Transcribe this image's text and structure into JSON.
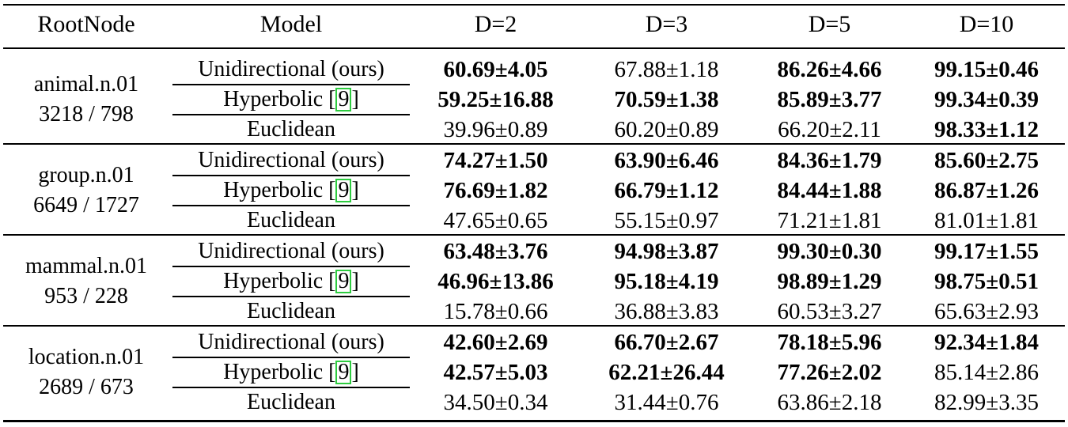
{
  "table": {
    "headers": [
      "RootNode",
      "Model",
      "D=2",
      "D=3",
      "D=5",
      "D=10"
    ],
    "groups": [
      {
        "root": "animal.n.01",
        "counts": "3218 / 798",
        "rows": [
          {
            "model": "Unidirectional (ours)",
            "cite": "",
            "cells": [
              {
                "text": "60.69±4.05",
                "bold": true
              },
              {
                "text": "67.88±1.18",
                "bold": false
              },
              {
                "text": "86.26±4.66",
                "bold": true
              },
              {
                "text": "99.15±0.46",
                "bold": true
              }
            ]
          },
          {
            "model": "Hyperbolic [",
            "cite": "9",
            "cells": [
              {
                "text": "59.25±16.88",
                "bold": true
              },
              {
                "text": "70.59±1.38",
                "bold": true
              },
              {
                "text": "85.89±3.77",
                "bold": true
              },
              {
                "text": "99.34±0.39",
                "bold": true
              }
            ]
          },
          {
            "model": "Euclidean",
            "cite": "",
            "cells": [
              {
                "text": "39.96±0.89",
                "bold": false
              },
              {
                "text": "60.20±0.89",
                "bold": false
              },
              {
                "text": "66.20±2.11",
                "bold": false
              },
              {
                "text": "98.33±1.12",
                "bold": true
              }
            ]
          }
        ]
      },
      {
        "root": "group.n.01",
        "counts": "6649 / 1727",
        "rows": [
          {
            "model": "Unidirectional (ours)",
            "cite": "",
            "cells": [
              {
                "text": "74.27±1.50",
                "bold": true
              },
              {
                "text": "63.90±6.46",
                "bold": true
              },
              {
                "text": "84.36±1.79",
                "bold": true
              },
              {
                "text": "85.60±2.75",
                "bold": true
              }
            ]
          },
          {
            "model": "Hyperbolic [",
            "cite": "9",
            "cells": [
              {
                "text": "76.69±1.82",
                "bold": true
              },
              {
                "text": "66.79±1.12",
                "bold": true
              },
              {
                "text": "84.44±1.88",
                "bold": true
              },
              {
                "text": "86.87±1.26",
                "bold": true
              }
            ]
          },
          {
            "model": "Euclidean",
            "cite": "",
            "cells": [
              {
                "text": "47.65±0.65",
                "bold": false
              },
              {
                "text": "55.15±0.97",
                "bold": false
              },
              {
                "text": "71.21±1.81",
                "bold": false
              },
              {
                "text": "81.01±1.81",
                "bold": false
              }
            ]
          }
        ]
      },
      {
        "root": "mammal.n.01",
        "counts": "953 / 228",
        "rows": [
          {
            "model": "Unidirectional (ours)",
            "cite": "",
            "cells": [
              {
                "text": "63.48±3.76",
                "bold": true
              },
              {
                "text": "94.98±3.87",
                "bold": true
              },
              {
                "text": "99.30±0.30",
                "bold": true
              },
              {
                "text": "99.17±1.55",
                "bold": true
              }
            ]
          },
          {
            "model": "Hyperbolic [",
            "cite": "9",
            "cells": [
              {
                "text": "46.96±13.86",
                "bold": true
              },
              {
                "text": "95.18±4.19",
                "bold": true
              },
              {
                "text": "98.89±1.29",
                "bold": true
              },
              {
                "text": "98.75±0.51",
                "bold": true
              }
            ]
          },
          {
            "model": "Euclidean",
            "cite": "",
            "cells": [
              {
                "text": "15.78±0.66",
                "bold": false
              },
              {
                "text": "36.88±3.83",
                "bold": false
              },
              {
                "text": "60.53±3.27",
                "bold": false
              },
              {
                "text": "65.63±2.93",
                "bold": false
              }
            ]
          }
        ]
      },
      {
        "root": "location.n.01",
        "counts": "2689 / 673",
        "rows": [
          {
            "model": "Unidirectional (ours)",
            "cite": "",
            "cells": [
              {
                "text": "42.60±2.69",
                "bold": true
              },
              {
                "text": "66.70±2.67",
                "bold": true
              },
              {
                "text": "78.18±5.96",
                "bold": true
              },
              {
                "text": "92.34±1.84",
                "bold": true
              }
            ]
          },
          {
            "model": "Hyperbolic [",
            "cite": "9",
            "cells": [
              {
                "text": "42.57±5.03",
                "bold": true
              },
              {
                "text": "62.21±26.44",
                "bold": true
              },
              {
                "text": "77.26±2.02",
                "bold": true
              },
              {
                "text": "85.14±2.86",
                "bold": false
              }
            ]
          },
          {
            "model": "Euclidean",
            "cite": "",
            "cells": [
              {
                "text": "34.50±0.34",
                "bold": false
              },
              {
                "text": "31.44±0.76",
                "bold": false
              },
              {
                "text": "63.86±2.18",
                "bold": false
              },
              {
                "text": "82.99±3.35",
                "bold": false
              }
            ]
          }
        ]
      }
    ],
    "cite_close": "]",
    "cite_color": "#2ecc40"
  }
}
